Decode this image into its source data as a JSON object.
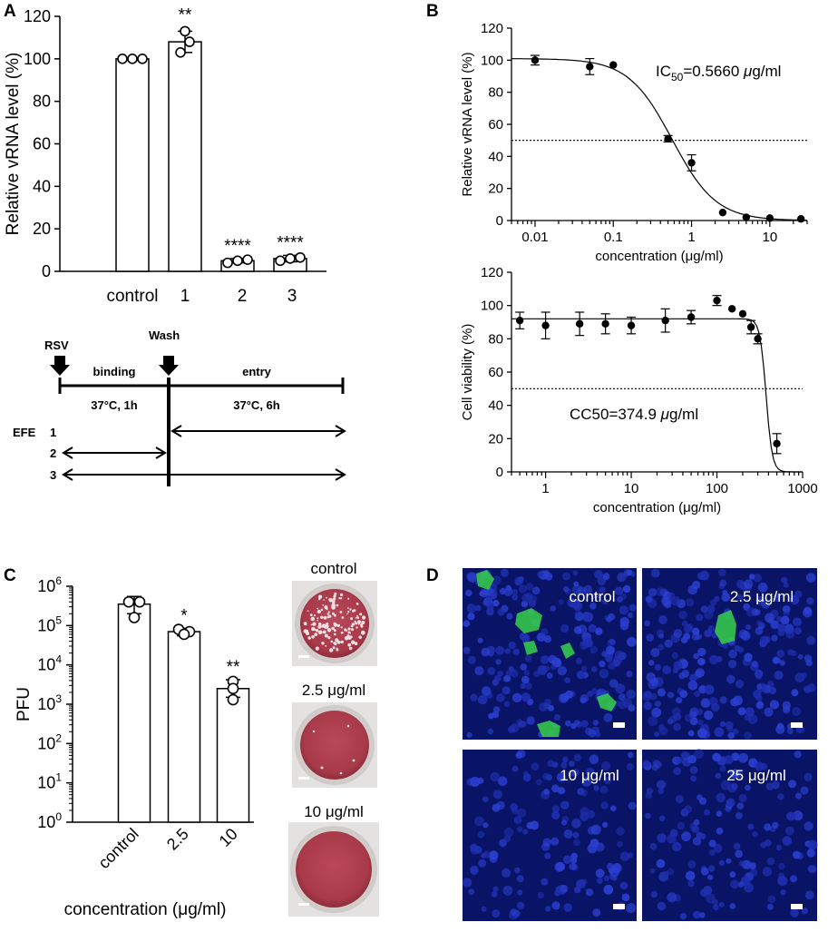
{
  "panels": {
    "A": "A",
    "B": "B",
    "C": "C",
    "D": "D"
  },
  "chart_data": [
    {
      "panel": "A",
      "type": "bar",
      "ylabel": "Relative vRNA level (%)",
      "ylim": [
        0,
        120
      ],
      "yticks": [
        0,
        20,
        40,
        60,
        80,
        100,
        120
      ],
      "categories": [
        "control",
        "1",
        "2",
        "3"
      ],
      "values": [
        100,
        108,
        5,
        6
      ],
      "errors": [
        0,
        5,
        1,
        1.5
      ],
      "points": [
        [
          100,
          100,
          100
        ],
        [
          103,
          108,
          113
        ],
        [
          4,
          5,
          5.5
        ],
        [
          5,
          6,
          6.5
        ]
      ],
      "significance": [
        "",
        "**",
        "****",
        "****"
      ]
    },
    {
      "panel": "B-top",
      "type": "scatter",
      "xlabel": "concentration (μg/ml)",
      "ylabel": "Relative vRNA level (%)",
      "xscale": "log",
      "xlim": [
        0.005,
        30
      ],
      "ylim": [
        0,
        120
      ],
      "xticks": [
        "0.01",
        "0.1",
        "1",
        "10"
      ],
      "yticks": [
        0,
        20,
        40,
        60,
        80,
        100,
        120
      ],
      "x": [
        0.01,
        0.05,
        0.1,
        0.5,
        1,
        2.5,
        5,
        10,
        25
      ],
      "y": [
        100,
        96,
        97,
        51,
        36,
        5,
        2,
        1.5,
        1
      ],
      "err": [
        3,
        5,
        0,
        2,
        5,
        0,
        0,
        0,
        0
      ],
      "reference_line": 50,
      "annotation": {
        "prefix": "IC",
        "sub": "50",
        "value": "=0.5660 ",
        "mu": "μ",
        "unit": "g/ml"
      }
    },
    {
      "panel": "B-bottom",
      "type": "scatter",
      "xlabel": "concentration (μg/ml)",
      "ylabel": "Cell viability (%)",
      "xscale": "log",
      "xlim": [
        0.4,
        1000
      ],
      "ylim": [
        0,
        120
      ],
      "xticks": [
        "1",
        "10",
        "100",
        "1000"
      ],
      "yticks": [
        0,
        20,
        40,
        60,
        80,
        100,
        120
      ],
      "x": [
        0.5,
        1,
        2.5,
        5,
        10,
        25,
        50,
        100,
        150,
        200,
        250,
        300,
        500
      ],
      "y": [
        91,
        88,
        89,
        89,
        88,
        91,
        93,
        103,
        98,
        95,
        87,
        80,
        17
      ],
      "err": [
        5,
        8,
        7,
        6,
        5,
        7,
        4,
        3,
        0,
        0,
        4,
        3,
        6
      ],
      "reference_line": 50,
      "annotation": {
        "prefix": "CC50=374.9 ",
        "mu": "μ",
        "unit": "g/ml"
      }
    },
    {
      "panel": "C",
      "type": "bar",
      "xlabel": "concentration (μg/ml)",
      "ylabel": "PFU",
      "yscale": "log",
      "ylim": [
        1,
        1000000
      ],
      "yticks": [
        {
          "base": "10",
          "exp": "0"
        },
        {
          "base": "10",
          "exp": "1"
        },
        {
          "base": "10",
          "exp": "2"
        },
        {
          "base": "10",
          "exp": "3"
        },
        {
          "base": "10",
          "exp": "4"
        },
        {
          "base": "10",
          "exp": "5"
        },
        {
          "base": "10",
          "exp": "6"
        }
      ],
      "categories": [
        "control",
        "2.5",
        "10"
      ],
      "values": [
        350000,
        70000,
        2500
      ],
      "error_lo": [
        200000,
        55000,
        1500
      ],
      "error_hi": [
        550000,
        85000,
        4200
      ],
      "points": [
        [
          400000,
          400000,
          160000
        ],
        [
          80000,
          70000,
          60000
        ],
        [
          3800,
          2500,
          1300
        ]
      ],
      "significance": [
        "",
        "*",
        "**"
      ]
    }
  ],
  "schematic": {
    "rsv": "RSV",
    "wash": "Wash",
    "binding": "binding",
    "entry": "entry",
    "binding_cond": "37°C, 1h",
    "entry_cond": "37°C, 6h",
    "efe": "EFE",
    "rows": [
      "1",
      "2",
      "3"
    ]
  },
  "plates": [
    "control",
    "2.5 μg/ml",
    "10 μg/ml"
  ],
  "micrographs": [
    "control",
    "2.5 μg/ml",
    "10 μg/ml",
    "25 μg/ml"
  ],
  "colors": {
    "plate_red": "#a93a4a",
    "nuclei_blue": "#1f2fb0",
    "infected_green": "#36d04a"
  }
}
